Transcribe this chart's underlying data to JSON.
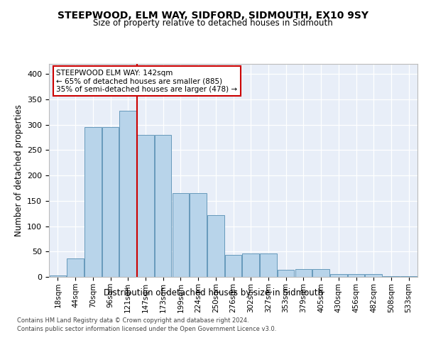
{
  "title": "STEEPWOOD, ELM WAY, SIDFORD, SIDMOUTH, EX10 9SY",
  "subtitle": "Size of property relative to detached houses in Sidmouth",
  "xlabel": "Distribution of detached houses by size in Sidmouth",
  "ylabel": "Number of detached properties",
  "bar_values": [
    3,
    37,
    295,
    295,
    328,
    280,
    280,
    165,
    165,
    122,
    44,
    46,
    46,
    14,
    15,
    15,
    5,
    5,
    6,
    2,
    1
  ],
  "bar_labels": [
    "18sqm",
    "44sqm",
    "70sqm",
    "96sqm",
    "121sqm",
    "147sqm",
    "173sqm",
    "199sqm",
    "224sqm",
    "250sqm",
    "276sqm",
    "302sqm",
    "327sqm",
    "353sqm",
    "379sqm",
    "405sqm",
    "430sqm",
    "456sqm",
    "482sqm",
    "508sqm",
    "533sqm"
  ],
  "bar_color": "#b8d4ea",
  "bar_edge_color": "#6699bb",
  "property_line_x": 5,
  "property_line_color": "#cc0000",
  "annotation_text": "STEEPWOOD ELM WAY: 142sqm\n← 65% of detached houses are smaller (885)\n35% of semi-detached houses are larger (478) →",
  "annotation_box_color": "#ffffff",
  "annotation_box_edge": "#cc0000",
  "ylim": [
    0,
    420
  ],
  "yticks": [
    0,
    50,
    100,
    150,
    200,
    250,
    300,
    350,
    400
  ],
  "background_color": "#e8eef8",
  "footer_text": "Contains HM Land Registry data © Crown copyright and database right 2024.\nContains public sector information licensed under the Open Government Licence v3.0."
}
